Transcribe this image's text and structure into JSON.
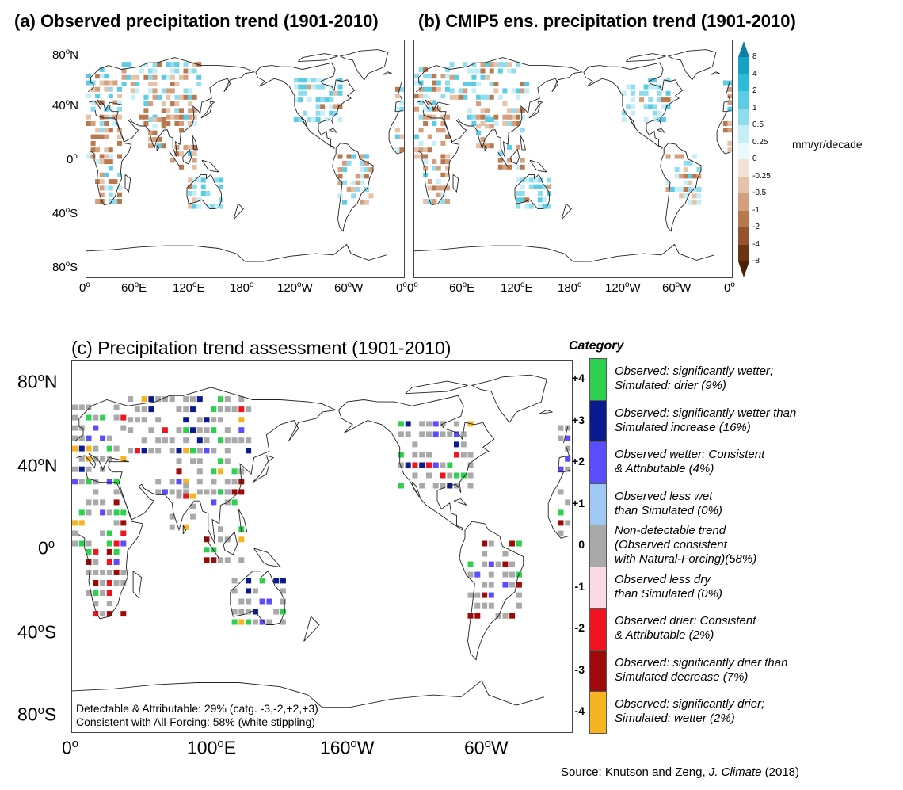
{
  "panels": {
    "a": {
      "title": "(a) Observed precipitation trend (1901-2010)"
    },
    "b": {
      "title": "(b) CMIP5 ens. precipitation trend  (1901-2010)"
    },
    "c": {
      "title": "(c) Precipitation trend assessment (1901-2010)"
    }
  },
  "axes_small": {
    "lat": [
      "80°N",
      "40°N",
      "0°",
      "40°S",
      "80°S"
    ],
    "lon": [
      "0°",
      "60°E",
      "120°E",
      "180°",
      "120°W",
      "60°W",
      "0°"
    ]
  },
  "axes_large": {
    "lat": [
      "80°N",
      "40°N",
      "0°",
      "40°S",
      "80°S"
    ],
    "lon": [
      "0°",
      "100°E",
      "160°W",
      "60°W"
    ]
  },
  "colorbar": {
    "units": "mm/yr/decade",
    "labels": [
      "8",
      "4",
      "2",
      "1",
      "0.5",
      "0.25",
      "0",
      "-0.25",
      "-0.5",
      "-1",
      "-2",
      "-4",
      "-8"
    ],
    "colors": [
      "#0e7fa6",
      "#17a2c4",
      "#2fbad8",
      "#5ccbe4",
      "#8fdcee",
      "#c5eef6",
      "#eaf9fb",
      "#f3e2d6",
      "#e5c2aa",
      "#d39f7e",
      "#b97950",
      "#955330",
      "#6b3413",
      "#4a2007"
    ]
  },
  "category": {
    "heading": "Category",
    "items": [
      {
        "num": "+4",
        "color": "#2ed14f",
        "lines": [
          "Observed: significantly wetter;",
          "Simulated: drier (9%)"
        ]
      },
      {
        "num": "+3",
        "color": "#0b1a8f",
        "lines": [
          "Observed: significantly wetter than",
          "Simulated increase (16%)"
        ]
      },
      {
        "num": "+2",
        "color": "#5a4cff",
        "lines": [
          "Observed wetter: Consistent",
          "& Attributable (4%)"
        ]
      },
      {
        "num": "+1",
        "color": "#9fc8f5",
        "lines": [
          "Observed less wet",
          "than Simulated (0%)"
        ]
      },
      {
        "num": "0",
        "color": "#a9a9a9",
        "lines": [
          "Non-detectable trend",
          "(Observed consistent",
          "with Natural-Forcing)(58%)"
        ]
      },
      {
        "num": "-1",
        "color": "#fadbe6",
        "lines": [
          "Observed less dry",
          "than Simulated (0%)"
        ]
      },
      {
        "num": "-2",
        "color": "#f0141e",
        "lines": [
          "Observed drier: Consistent",
          "& Attributable (2%)"
        ]
      },
      {
        "num": "-3",
        "color": "#9e0a0a",
        "lines": [
          "Observed: significantly drier than",
          "Simulated decrease (7%)"
        ]
      },
      {
        "num": "-4",
        "color": "#f7b421",
        "lines": [
          "Observed: significantly drier;",
          "Simulated: wetter (2%)"
        ]
      }
    ]
  },
  "notes": {
    "line1": "Detectable & Attributable: 29% (catg. -3,-2,+2,+3)",
    "line2": "Consistent with All-Forcing: 58% (white stippling)"
  },
  "source": {
    "prefix": "Source:  Knutson and Zeng, ",
    "journal": "J. Climate",
    "suffix": " (2018)"
  }
}
